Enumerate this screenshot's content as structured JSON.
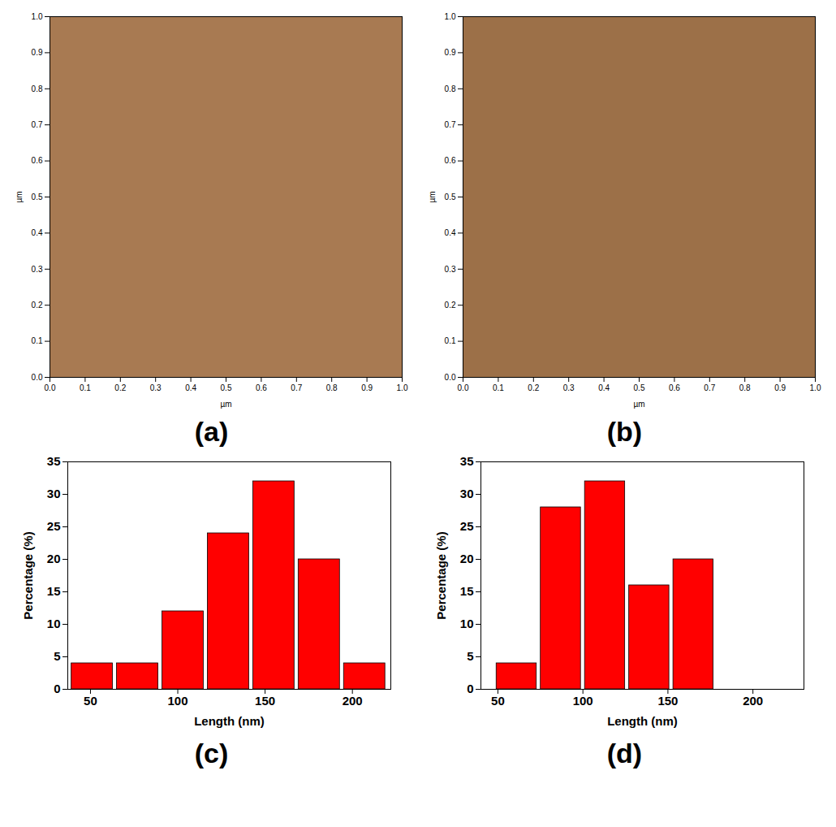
{
  "chart_data": [
    {
      "type": "image",
      "panel_label": "(a)",
      "x_label": "µm",
      "y_label": "µm",
      "color": "#a87a52",
      "xlim": [
        0,
        1
      ],
      "ylim": [
        0,
        1
      ],
      "xticks": [
        {
          "value": 0,
          "label": "0.0"
        },
        {
          "value": 0.1,
          "label": "0.1"
        },
        {
          "value": 0.2,
          "label": "0.2"
        },
        {
          "value": 0.3,
          "label": "0.3"
        },
        {
          "value": 0.4,
          "label": "0.4"
        },
        {
          "value": 0.5,
          "label": "0.5"
        },
        {
          "value": 0.6,
          "label": "0.6"
        },
        {
          "value": 0.7,
          "label": "0.7"
        },
        {
          "value": 0.8,
          "label": "0.8"
        },
        {
          "value": 0.9,
          "label": "0.9"
        },
        {
          "value": 1,
          "label": "1.0"
        }
      ],
      "yticks": [
        {
          "value": 0,
          "label": "0.0"
        },
        {
          "value": 0.1,
          "label": "0.1"
        },
        {
          "value": 0.2,
          "label": "0.2"
        },
        {
          "value": 0.3,
          "label": "0.3"
        },
        {
          "value": 0.4,
          "label": "0.4"
        },
        {
          "value": 0.5,
          "label": "0.5"
        },
        {
          "value": 0.6,
          "label": "0.6"
        },
        {
          "value": 0.7,
          "label": "0.7"
        },
        {
          "value": 0.8,
          "label": "0.8"
        },
        {
          "value": 0.9,
          "label": "0.9"
        },
        {
          "value": 1,
          "label": "1.0"
        }
      ]
    },
    {
      "type": "image",
      "panel_label": "(b)",
      "x_label": "µm",
      "y_label": "µm",
      "color": "#9c7048",
      "xlim": [
        0,
        1
      ],
      "ylim": [
        0,
        1
      ],
      "xticks": [
        {
          "value": 0,
          "label": "0.0"
        },
        {
          "value": 0.1,
          "label": "0.1"
        },
        {
          "value": 0.2,
          "label": "0.2"
        },
        {
          "value": 0.3,
          "label": "0.3"
        },
        {
          "value": 0.4,
          "label": "0.4"
        },
        {
          "value": 0.5,
          "label": "0.5"
        },
        {
          "value": 0.6,
          "label": "0.6"
        },
        {
          "value": 0.7,
          "label": "0.7"
        },
        {
          "value": 0.8,
          "label": "0.8"
        },
        {
          "value": 0.9,
          "label": "0.9"
        },
        {
          "value": 1,
          "label": "1.0"
        }
      ],
      "yticks": [
        {
          "value": 0,
          "label": "0.0"
        },
        {
          "value": 0.1,
          "label": "0.1"
        },
        {
          "value": 0.2,
          "label": "0.2"
        },
        {
          "value": 0.3,
          "label": "0.3"
        },
        {
          "value": 0.4,
          "label": "0.4"
        },
        {
          "value": 0.5,
          "label": "0.5"
        },
        {
          "value": 0.6,
          "label": "0.6"
        },
        {
          "value": 0.7,
          "label": "0.7"
        },
        {
          "value": 0.8,
          "label": "0.8"
        },
        {
          "value": 0.9,
          "label": "0.9"
        },
        {
          "value": 1,
          "label": "1.0"
        }
      ]
    },
    {
      "type": "histogram",
      "panel_label": "(c)",
      "x_label": "Length (nm)",
      "y_label": "Percentage (%)",
      "color": "#ff0000",
      "bins": [
        38,
        64,
        90,
        116,
        142,
        168,
        194,
        220
      ],
      "values": [
        4,
        4,
        12,
        24,
        32,
        20,
        4
      ],
      "xlim": [
        37,
        222
      ],
      "ylim": [
        0,
        35
      ],
      "xticks": [
        50,
        100,
        150,
        200
      ],
      "yticks": [
        0,
        5,
        10,
        15,
        20,
        25,
        30,
        35
      ]
    },
    {
      "type": "histogram",
      "panel_label": "(d)",
      "x_label": "Length (nm)",
      "y_label": "Percentage (%)",
      "color": "#ff0000",
      "bins": [
        48,
        74,
        100,
        126,
        152,
        178
      ],
      "values": [
        4,
        28,
        32,
        16,
        20
      ],
      "xlim": [
        40,
        230
      ],
      "ylim": [
        0,
        35
      ],
      "xticks": [
        50,
        100,
        150,
        200
      ],
      "yticks": [
        0,
        5,
        10,
        15,
        20,
        25,
        30,
        35
      ]
    }
  ]
}
